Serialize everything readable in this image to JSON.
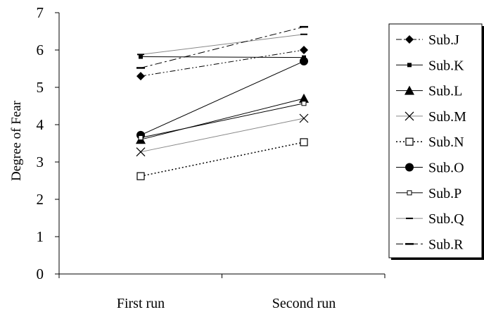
{
  "chart_data": {
    "type": "line",
    "title": "",
    "xlabel": "",
    "ylabel": "Degree of Fear",
    "categories": [
      "First run",
      "Second run"
    ],
    "ylim": [
      0,
      7
    ],
    "yticks": [
      0,
      1,
      2,
      3,
      4,
      5,
      6,
      7
    ],
    "grid": false,
    "legend": "right",
    "series": [
      {
        "name": "Sub.J",
        "values": [
          5.3,
          6.0
        ],
        "marker": "diamond",
        "dash": "dash-dot-dot",
        "stroke_width": 1
      },
      {
        "name": "Sub.K",
        "values": [
          5.82,
          5.8
        ],
        "marker": "small-square",
        "dash": "solid",
        "stroke_width": 1
      },
      {
        "name": "Sub.L",
        "values": [
          3.6,
          4.7
        ],
        "marker": "triangle",
        "dash": "solid",
        "stroke_width": 1
      },
      {
        "name": "Sub.M",
        "values": [
          3.27,
          4.17
        ],
        "marker": "x",
        "dash": "solid-gray",
        "stroke_width": 1
      },
      {
        "name": "Sub.N",
        "values": [
          2.62,
          3.53
        ],
        "marker": "open-square",
        "dash": "dotted",
        "stroke_width": 1.5
      },
      {
        "name": "Sub.O",
        "values": [
          3.72,
          5.7
        ],
        "marker": "circle",
        "dash": "solid",
        "stroke_width": 1
      },
      {
        "name": "Sub.P",
        "values": [
          3.65,
          4.57
        ],
        "marker": "tiny-open-square",
        "dash": "solid",
        "stroke_width": 1
      },
      {
        "name": "Sub.Q",
        "values": [
          5.88,
          6.42
        ],
        "marker": "dash",
        "dash": "solid-gray",
        "stroke_width": 1
      },
      {
        "name": "Sub.R",
        "values": [
          5.52,
          6.62
        ],
        "marker": "dash-bold",
        "dash": "dash-dot",
        "stroke_width": 1
      }
    ]
  }
}
